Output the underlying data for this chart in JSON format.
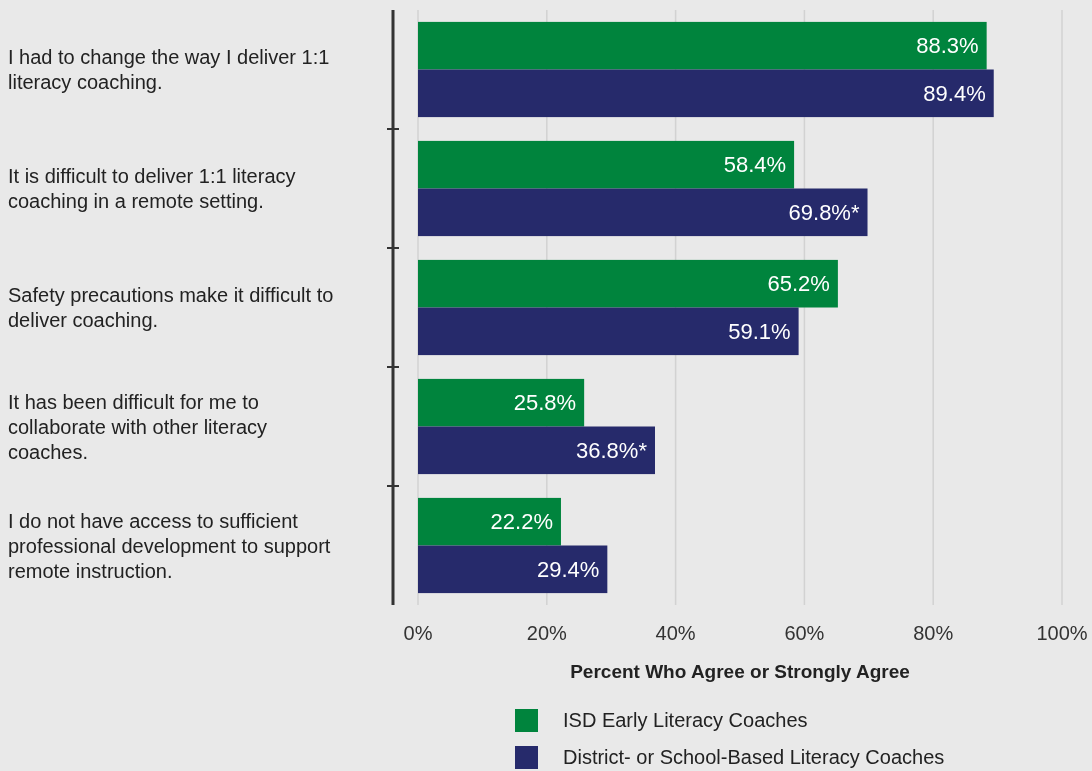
{
  "chart_data": {
    "type": "bar",
    "orientation": "horizontal",
    "categories": [
      "I had to change the way I deliver 1:1 literacy coaching.",
      "It is difficult to deliver 1:1 literacy coaching in a remote setting.",
      "Safety precautions make it difficult to deliver coaching.",
      "It has been difficult for me to collaborate with other literacy coaches.",
      "I do not have access to sufficient professional development to support remote instruction."
    ],
    "series": [
      {
        "name": "ISD Early Literacy Coaches",
        "color": "#00843d",
        "values": [
          88.3,
          58.4,
          65.2,
          25.8,
          22.2
        ],
        "value_labels": [
          "88.3%",
          "58.4%",
          "65.2%",
          "25.8%",
          "22.2%"
        ]
      },
      {
        "name": "District- or School-Based Literacy Coaches",
        "color": "#262a6b",
        "values": [
          89.4,
          69.8,
          59.1,
          36.8,
          29.4
        ],
        "value_labels": [
          "89.4%",
          "69.8%*",
          "59.1%",
          "36.8%*",
          "29.4%"
        ]
      }
    ],
    "xlabel": "Percent Who Agree or Strongly Agree",
    "xlim": [
      0,
      100
    ],
    "xticks": [
      {
        "value": 0,
        "label": "0%"
      },
      {
        "value": 20,
        "label": "20%"
      },
      {
        "value": 40,
        "label": "40%"
      },
      {
        "value": 60,
        "label": "60%"
      },
      {
        "value": 80,
        "label": "80%"
      },
      {
        "value": 100,
        "label": "100%"
      }
    ],
    "grid": "x",
    "legend": "bottom"
  }
}
